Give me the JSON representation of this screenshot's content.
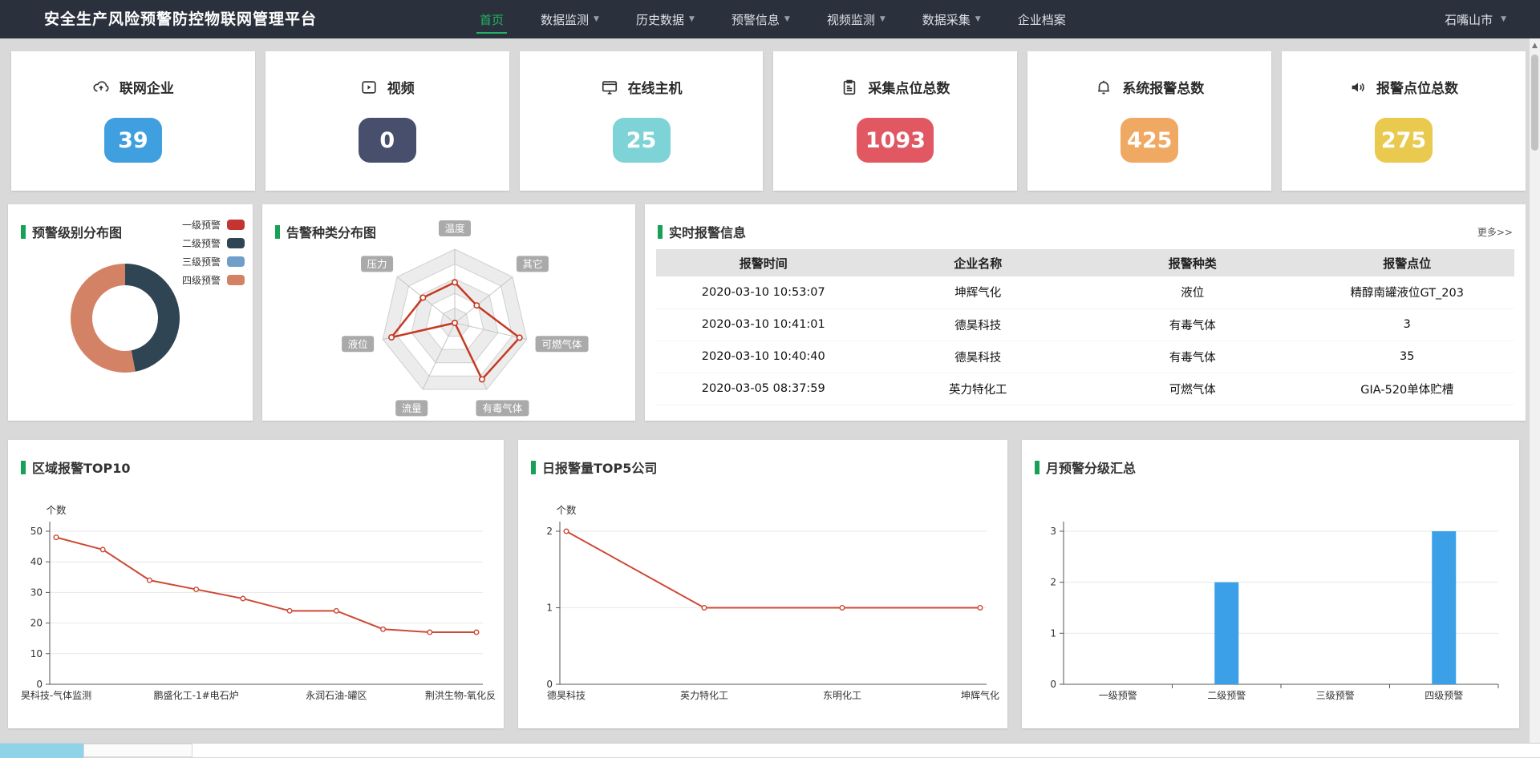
{
  "nav": {
    "title": "安全生产风险预警防控物联网管理平台",
    "menu": [
      {
        "label": "首页",
        "active": true,
        "caret": false
      },
      {
        "label": "数据监测",
        "active": false,
        "caret": true
      },
      {
        "label": "历史数据",
        "active": false,
        "caret": true
      },
      {
        "label": "预警信息",
        "active": false,
        "caret": true
      },
      {
        "label": "视频监测",
        "active": false,
        "caret": true
      },
      {
        "label": "数据采集",
        "active": false,
        "caret": true
      },
      {
        "label": "企业档案",
        "active": false,
        "caret": false
      }
    ],
    "region": "石嘴山市"
  },
  "cards": [
    {
      "label": "联网企业",
      "value": "39",
      "badge_color": "#3f9fdf",
      "icon": "cloud-upload"
    },
    {
      "label": "视频",
      "value": "0",
      "badge_color": "#474f6d",
      "icon": "video"
    },
    {
      "label": "在线主机",
      "value": "25",
      "badge_color": "#7ed3d7",
      "icon": "monitor"
    },
    {
      "label": "采集点位总数",
      "value": "1093",
      "badge_color": "#e15863",
      "icon": "clipboard"
    },
    {
      "label": "系统报警总数",
      "value": "425",
      "badge_color": "#f0a963",
      "icon": "bell"
    },
    {
      "label": "报警点位总数",
      "value": "275",
      "badge_color": "#e9c94e",
      "icon": "speaker"
    }
  ],
  "donut_panel": {
    "title": "预警级别分布图",
    "chart": {
      "type": "pie",
      "inner_radius": 41,
      "outer_radius": 68,
      "slices": [
        {
          "label": "一级预警",
          "color": "#c23531",
          "percent": 0
        },
        {
          "label": "二级预警",
          "color": "#2f4554",
          "percent": 47
        },
        {
          "label": "三级预警",
          "color": "#6f9ec9",
          "percent": 0
        },
        {
          "label": "四级预警",
          "color": "#d48265",
          "percent": 53
        }
      ]
    }
  },
  "radar_panel": {
    "title": "告警种类分布图",
    "chart": {
      "type": "radar",
      "categories": [
        "温度",
        "其它",
        "可燃气体",
        "有毒气体",
        "流量",
        "液位",
        "压力"
      ],
      "values": [
        55,
        38,
        90,
        85,
        0,
        88,
        55
      ],
      "max": 100,
      "rings": 5,
      "line_color": "#c53a21",
      "label_bg": "#9b9b9b"
    }
  },
  "table_panel": {
    "title": "实时报警信息",
    "more": "更多>>",
    "headers": [
      "报警时间",
      "企业名称",
      "报警种类",
      "报警点位"
    ],
    "rows": [
      [
        "2020-03-10 10:53:07",
        "坤辉气化",
        "液位",
        "精醇南罐液位GT_203"
      ],
      [
        "2020-03-10 10:41:01",
        "德昊科技",
        "有毒气体",
        "3"
      ],
      [
        "2020-03-10 10:40:40",
        "德昊科技",
        "有毒气体",
        "35"
      ],
      [
        "2020-03-05 08:37:59",
        "英力特化工",
        "可燃气体",
        "GIA-520单体贮槽"
      ]
    ]
  },
  "bottom_panels": [
    {
      "title": "区域报警TOP10",
      "chart": {
        "type": "line",
        "ylabel": "个数",
        "yticks": [
          0,
          10,
          20,
          30,
          40,
          50
        ],
        "ymax": 50,
        "color": "#cd4a36",
        "categories": [
          "昊科技-气体监测",
          "",
          "",
          "鹏盛化工-1#电石炉",
          "",
          "",
          "永润石油-罐区",
          "",
          "",
          "荆洪生物-氧化反"
        ],
        "values": [
          48,
          44,
          34,
          31,
          28,
          24,
          24,
          18,
          17,
          17
        ]
      }
    },
    {
      "title": "日报警量TOP5公司",
      "chart": {
        "type": "line",
        "ylabel": "个数",
        "yticks": [
          0,
          1,
          2
        ],
        "ymax": 2,
        "color": "#cd4a36",
        "categories": [
          "德昊科技",
          "英力特化工",
          "东明化工",
          "坤辉气化"
        ],
        "values": [
          2,
          1,
          1,
          1
        ]
      }
    },
    {
      "title": "月预警分级汇总",
      "chart": {
        "type": "bar",
        "ylabel": "",
        "yticks": [
          0,
          1,
          2,
          3
        ],
        "ymax": 3,
        "color": "#3ba0e8",
        "categories": [
          "一级预警",
          "二级预警",
          "三级预警",
          "四级预警"
        ],
        "values": [
          0,
          2,
          0,
          3
        ]
      }
    }
  ]
}
